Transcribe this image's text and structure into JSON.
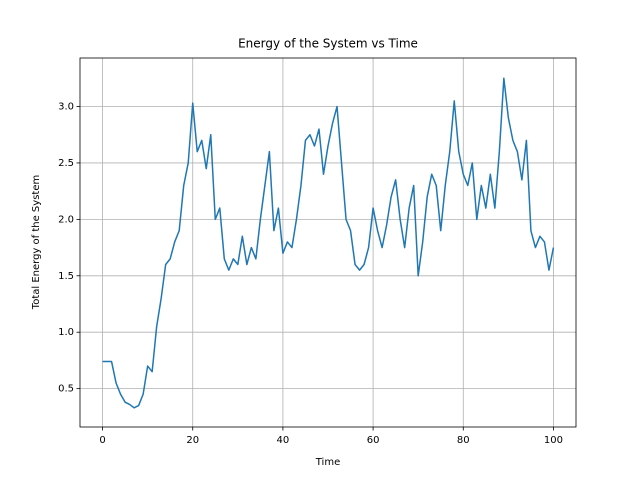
{
  "chart_data": {
    "type": "line",
    "title": "Energy of the System vs Time",
    "x_label": "Time",
    "y_label": "Total Energy of the System",
    "x": [
      0,
      1,
      2,
      3,
      4,
      5,
      6,
      7,
      8,
      9,
      10,
      11,
      12,
      13,
      14,
      15,
      16,
      17,
      18,
      19,
      20,
      21,
      22,
      23,
      24,
      25,
      26,
      27,
      28,
      29,
      30,
      31,
      32,
      33,
      34,
      35,
      36,
      37,
      38,
      39,
      40,
      41,
      42,
      43,
      44,
      45,
      46,
      47,
      48,
      49,
      50,
      51,
      52,
      53,
      54,
      55,
      56,
      57,
      58,
      59,
      60,
      61,
      62,
      63,
      64,
      65,
      66,
      67,
      68,
      69,
      70,
      71,
      72,
      73,
      74,
      75,
      76,
      77,
      78,
      79,
      80,
      81,
      82,
      83,
      84,
      85,
      86,
      87,
      88,
      89,
      90,
      91,
      92,
      93,
      94,
      95,
      96,
      97,
      98,
      99,
      100
    ],
    "series": [
      {
        "name": "Energy",
        "color": "#1f77b4",
        "values": [
          0.74,
          0.74,
          0.74,
          0.55,
          0.45,
          0.38,
          0.36,
          0.33,
          0.35,
          0.45,
          0.7,
          0.65,
          1.05,
          1.3,
          1.6,
          1.65,
          1.8,
          1.9,
          2.3,
          2.5,
          3.03,
          2.6,
          2.7,
          2.45,
          2.75,
          2.0,
          2.1,
          1.65,
          1.55,
          1.65,
          1.6,
          1.85,
          1.6,
          1.75,
          1.65,
          2.0,
          2.3,
          2.6,
          1.9,
          2.1,
          1.7,
          1.8,
          1.75,
          2.0,
          2.3,
          2.7,
          2.75,
          2.65,
          2.8,
          2.4,
          2.65,
          2.85,
          3.0,
          2.5,
          2.0,
          1.9,
          1.6,
          1.55,
          1.6,
          1.75,
          2.1,
          1.9,
          1.75,
          1.95,
          2.2,
          2.35,
          2.0,
          1.75,
          2.1,
          2.3,
          1.5,
          1.8,
          2.2,
          2.4,
          2.3,
          1.9,
          2.3,
          2.6,
          3.05,
          2.6,
          2.4,
          2.3,
          2.5,
          2.0,
          2.3,
          2.1,
          2.4,
          2.1,
          2.6,
          3.25,
          2.9,
          2.7,
          2.6,
          2.35,
          2.7,
          1.9,
          1.75,
          1.85,
          1.8,
          1.55,
          1.75
        ]
      }
    ],
    "xlim": [
      -5,
      105
    ],
    "xticks": [
      0,
      20,
      40,
      60,
      80,
      100
    ],
    "ylim": [
      0.16,
      3.43
    ],
    "yticks": [
      0.5,
      1.0,
      1.5,
      2.0,
      2.5,
      3.0
    ],
    "grid": true
  }
}
